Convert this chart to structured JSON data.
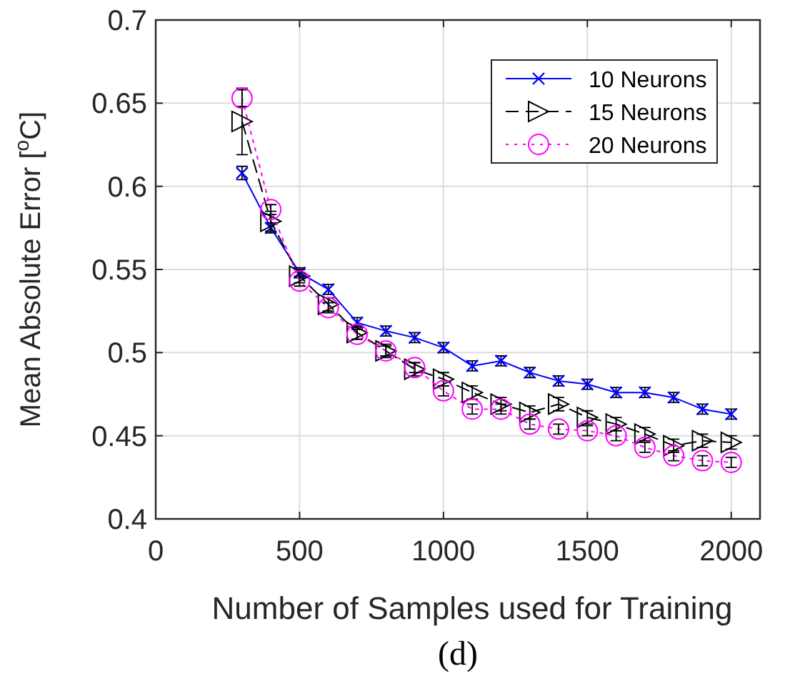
{
  "chart_data": {
    "type": "line",
    "xlabel": "Number of Samples used for Training",
    "ylabel": "Mean Absolute Error [$^{o}$C]",
    "annotations": [
      "(d)"
    ],
    "x": [
      300,
      400,
      500,
      600,
      700,
      800,
      900,
      1000,
      1100,
      1200,
      1300,
      1400,
      1500,
      1600,
      1700,
      1800,
      1900,
      2000
    ],
    "xlim": [
      0,
      2100
    ],
    "xticks": [
      0,
      500,
      1000,
      1500,
      2000
    ],
    "ylim": [
      0.4,
      0.7
    ],
    "yticks": [
      0.4,
      0.45,
      0.5,
      0.55,
      0.6,
      0.65,
      0.7
    ],
    "grid": true,
    "legend": "top right",
    "series": [
      {
        "name": "10 Neurons",
        "color": "#0000ff",
        "marker": "cross",
        "line_style": "solid",
        "values": [
          0.608,
          0.575,
          0.548,
          0.538,
          0.518,
          0.513,
          0.509,
          0.503,
          0.492,
          0.495,
          0.488,
          0.483,
          0.481,
          0.476,
          0.476,
          0.473,
          0.466,
          0.463
        ],
        "errors": [
          0.004,
          0.003,
          0.003,
          0.003,
          0.003,
          0.003,
          0.003,
          0.003,
          0.003,
          0.003,
          0.003,
          0.003,
          0.003,
          0.003,
          0.003,
          0.003,
          0.003,
          0.003
        ]
      },
      {
        "name": "15 Neurons",
        "color": "#000000",
        "marker": "triangle",
        "line_style": "dashed",
        "values": [
          0.639,
          0.579,
          0.546,
          0.529,
          0.512,
          0.501,
          0.49,
          0.484,
          0.476,
          0.469,
          0.464,
          0.469,
          0.461,
          0.457,
          0.451,
          0.444,
          0.447,
          0.446
        ],
        "errors": [
          0.02,
          0.006,
          0.004,
          0.004,
          0.004,
          0.004,
          0.004,
          0.004,
          0.004,
          0.004,
          0.004,
          0.004,
          0.004,
          0.004,
          0.004,
          0.004,
          0.004,
          0.004
        ]
      },
      {
        "name": "20 Neurons",
        "color": "#ff00ff",
        "marker": "circle",
        "line_style": "dotted",
        "values": [
          0.653,
          0.586,
          0.543,
          0.527,
          0.511,
          0.501,
          0.491,
          0.477,
          0.466,
          0.466,
          0.457,
          0.454,
          0.453,
          0.45,
          0.443,
          0.438,
          0.435,
          0.434
        ],
        "errors": [
          0.005,
          0.003,
          0.003,
          0.003,
          0.003,
          0.003,
          0.003,
          0.003,
          0.003,
          0.003,
          0.003,
          0.003,
          0.003,
          0.003,
          0.003,
          0.003,
          0.003,
          0.003
        ]
      }
    ]
  }
}
